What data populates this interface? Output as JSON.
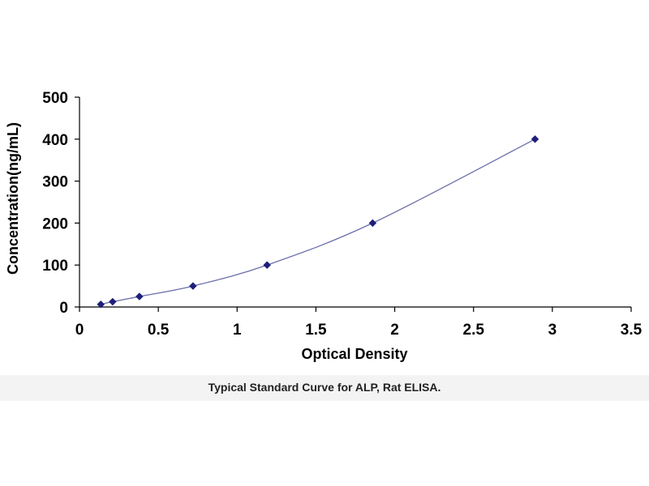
{
  "caption": "Typical Standard Curve for ALP, Rat ELISA.",
  "chart_data": {
    "type": "scatter",
    "title": "",
    "xlabel": "Optical Density",
    "ylabel": "Concentration(ng/mL)",
    "xlim": [
      0,
      3.5
    ],
    "ylim": [
      0,
      500
    ],
    "x_ticks": [
      "0",
      "0.5",
      "1",
      "1.5",
      "2",
      "2.5",
      "3",
      "3.5"
    ],
    "y_ticks": [
      "0",
      "100",
      "200",
      "300",
      "400",
      "500"
    ],
    "grid": false,
    "legend": "none",
    "series": [
      {
        "marker": "diamond",
        "color": "#1f1f7a",
        "trendline": "smooth curve",
        "points": [
          {
            "x": 0.135,
            "y": 6.25
          },
          {
            "x": 0.21,
            "y": 12.5
          },
          {
            "x": 0.38,
            "y": 25
          },
          {
            "x": 0.72,
            "y": 50
          },
          {
            "x": 1.19,
            "y": 100
          },
          {
            "x": 1.86,
            "y": 200
          },
          {
            "x": 2.89,
            "y": 400
          }
        ]
      }
    ]
  }
}
